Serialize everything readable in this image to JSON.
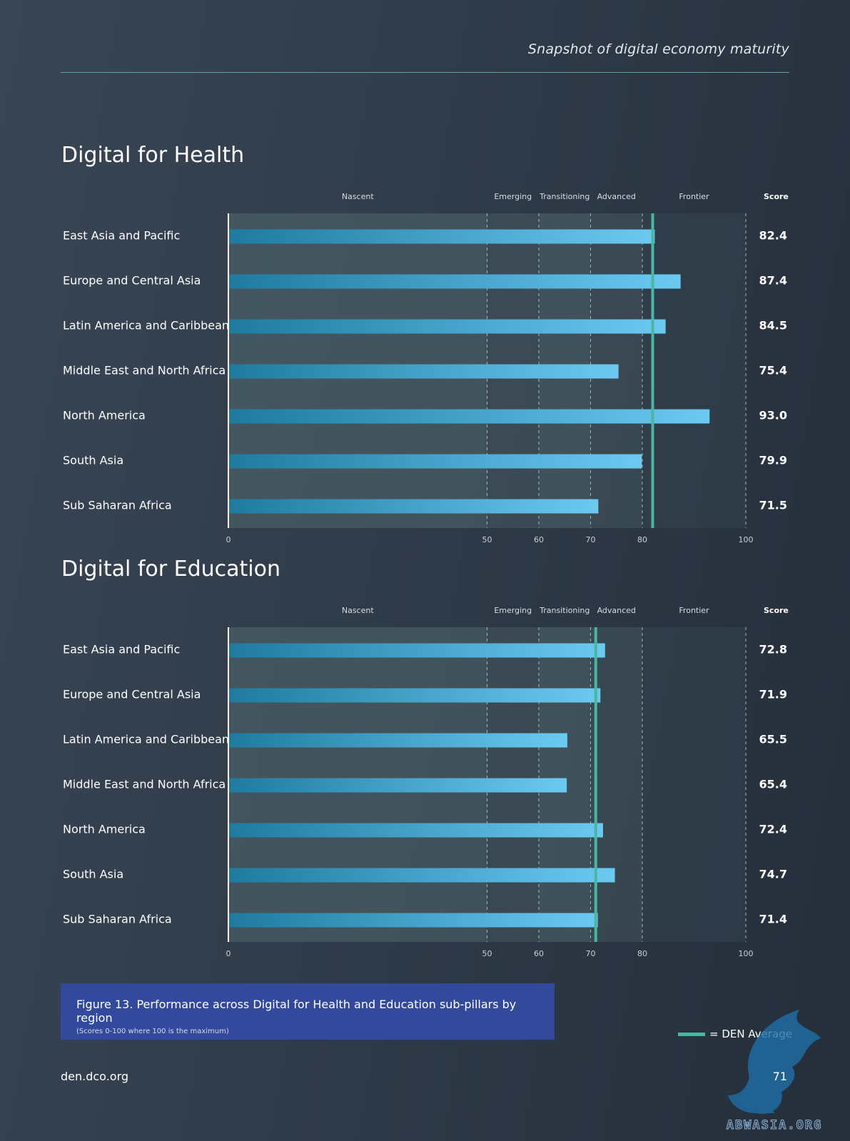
{
  "header": {
    "title": "Snapshot of digital economy maturity"
  },
  "footer": {
    "url": "den.dco.org",
    "page_number": "71"
  },
  "caption": {
    "title": "Figure 13. Performance across Digital for Health and Education sub-pillars by region",
    "subtitle": "(Scores 0-100 where 100 is the maximum)"
  },
  "legend": {
    "label": "= DEN Average"
  },
  "watermark": {
    "text": "ABWASIA.ORG"
  },
  "colors": {
    "bar_start": "#1f7aa0",
    "bar_end": "#6cc9ef",
    "average_line": "#49b6a4",
    "caption_bg": "#33499b"
  },
  "chart_data": [
    {
      "type": "bar",
      "orientation": "horizontal",
      "title": "Digital for Health",
      "categories": [
        "East Asia and Pacific",
        "Europe and Central Asia",
        "Latin America and Caribbean",
        "Middle East and North Africa",
        "North America",
        "South Asia",
        "Sub Saharan Africa"
      ],
      "values": [
        82.4,
        87.4,
        84.5,
        75.4,
        93.0,
        79.9,
        71.5
      ],
      "value_labels": [
        "82.4",
        "87.4",
        "84.5",
        "75.4",
        "93.0",
        "79.9",
        "71.5"
      ],
      "score_header": "Score",
      "average": 82,
      "xlim": [
        0,
        100
      ],
      "ticks": [
        0,
        50,
        60,
        70,
        80,
        100
      ],
      "tick_labels": [
        "0",
        "50",
        "60",
        "70",
        "80",
        "100"
      ],
      "stages": [
        {
          "label": "Nascent",
          "from": 0,
          "to": 50
        },
        {
          "label": "Emerging",
          "from": 50,
          "to": 60
        },
        {
          "label": "Transitioning",
          "from": 60,
          "to": 70
        },
        {
          "label": "Advanced",
          "from": 70,
          "to": 80
        },
        {
          "label": "Frontier",
          "from": 80,
          "to": 100
        }
      ]
    },
    {
      "type": "bar",
      "orientation": "horizontal",
      "title": "Digital for Education",
      "categories": [
        "East Asia and Pacific",
        "Europe and Central Asia",
        "Latin America and Caribbean",
        "Middle East and North Africa",
        "North America",
        "South Asia",
        "Sub Saharan Africa"
      ],
      "values": [
        72.8,
        71.9,
        65.5,
        65.4,
        72.4,
        74.7,
        71.4
      ],
      "value_labels": [
        "72.8",
        "71.9",
        "65.5",
        "65.4",
        "72.4",
        "74.7",
        "71.4"
      ],
      "score_header": "Score",
      "average": 71,
      "xlim": [
        0,
        100
      ],
      "ticks": [
        0,
        50,
        60,
        70,
        80,
        100
      ],
      "tick_labels": [
        "0",
        "50",
        "60",
        "70",
        "80",
        "100"
      ],
      "stages": [
        {
          "label": "Nascent",
          "from": 0,
          "to": 50
        },
        {
          "label": "Emerging",
          "from": 50,
          "to": 60
        },
        {
          "label": "Transitioning",
          "from": 60,
          "to": 70
        },
        {
          "label": "Advanced",
          "from": 70,
          "to": 80
        },
        {
          "label": "Frontier",
          "from": 80,
          "to": 100
        }
      ]
    }
  ]
}
